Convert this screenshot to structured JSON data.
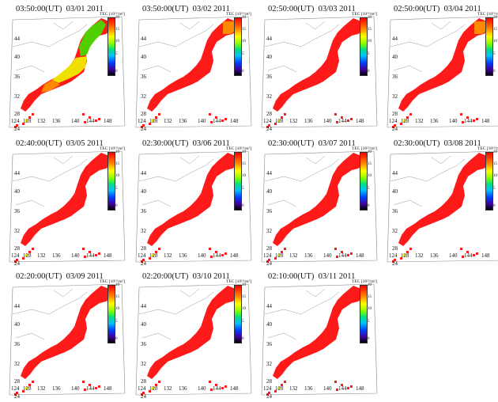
{
  "colorbar": {
    "label": "TEC [10¹⁶/m²]",
    "ticks": [
      "20",
      "15",
      "10",
      "5",
      "0"
    ]
  },
  "latitude_labels": [
    "44",
    "40",
    "36",
    "32",
    "28",
    "24"
  ],
  "longitude_labels": [
    "124",
    "128",
    "132",
    "136",
    "140",
    "144",
    "148"
  ],
  "colors": {
    "high": "#ff1a1a",
    "orange": "#ff8a00",
    "yellow": "#f0e000",
    "green": "#50d000",
    "coast": "#999999"
  },
  "panels": [
    {
      "time": "03:50:00(UT)",
      "date": "03/01 2011",
      "tint": "mixed"
    },
    {
      "time": "03:50:00(UT)",
      "date": "03/02 2011",
      "tint": "north-orange"
    },
    {
      "time": "02:50:00(UT)",
      "date": "03/03 2011",
      "tint": "red"
    },
    {
      "time": "02:50:00(UT)",
      "date": "03/04 2011",
      "tint": "north-orange"
    },
    {
      "time": "02:40:00(UT)",
      "date": "03/05 2011",
      "tint": "red"
    },
    {
      "time": "02:30:00(UT)",
      "date": "03/06 2011",
      "tint": "red"
    },
    {
      "time": "02:30:00(UT)",
      "date": "03/07 2011",
      "tint": "red"
    },
    {
      "time": "02:30:00(UT)",
      "date": "03/08 2011",
      "tint": "red"
    },
    {
      "time": "02:20:00(UT)",
      "date": "03/09 2011",
      "tint": "red"
    },
    {
      "time": "02:20:00(UT)",
      "date": "03/10 2011",
      "tint": "red"
    },
    {
      "time": "02:10:00(UT)",
      "date": "03/11 2011",
      "tint": "red"
    }
  ]
}
